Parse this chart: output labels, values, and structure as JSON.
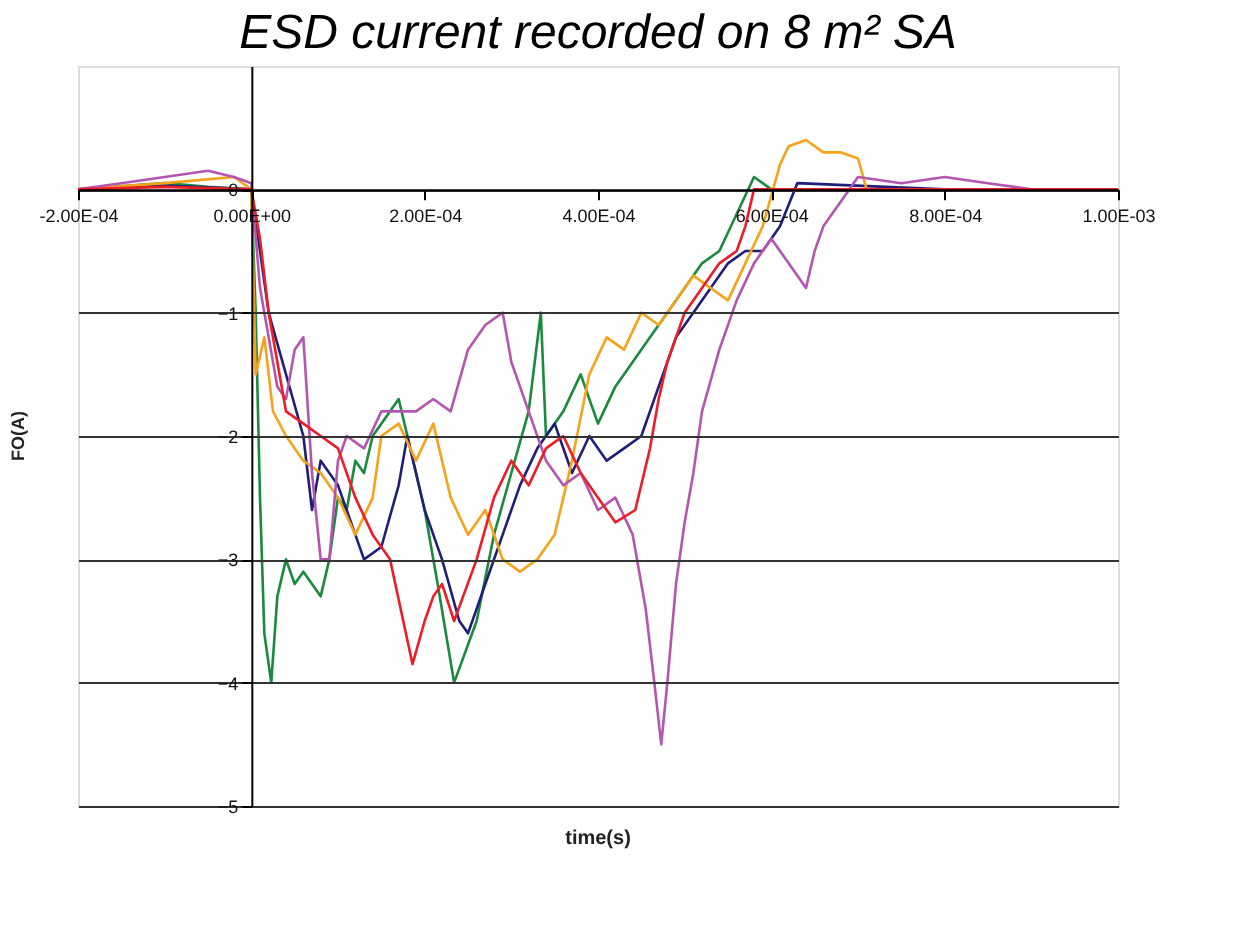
{
  "chart_data": {
    "type": "line",
    "title": "ESD current recorded on 8 m² SA",
    "xlabel": "time(s)",
    "ylabel": "FO(A)",
    "xlim": [
      -0.0002,
      0.001
    ],
    "ylim": [
      -5,
      1
    ],
    "xticks": [
      {
        "value": -0.0002,
        "label": "-2.00E-04"
      },
      {
        "value": 0,
        "label": "0.00E+00"
      },
      {
        "value": 0.0002,
        "label": "2.00E-04"
      },
      {
        "value": 0.0004,
        "label": "4.00E-04"
      },
      {
        "value": 0.0006,
        "label": "6.00E-04"
      },
      {
        "value": 0.0008,
        "label": "8.00E-04"
      },
      {
        "value": 0.001,
        "label": "1.00E-03"
      }
    ],
    "yticks": [
      -5,
      -4,
      -3,
      -2,
      -1,
      0
    ],
    "grid": "y",
    "legend": false,
    "marker": "none",
    "line_style": "solid",
    "series": [
      {
        "color": "#1a8a3c",
        "x": [
          -0.0002,
          -0.0001,
          -5e-05,
          0,
          5e-06,
          1e-05,
          1.5e-05,
          2.3e-05,
          3e-05,
          4e-05,
          5e-05,
          6e-05,
          7e-05,
          8e-05,
          9e-05,
          0.0001,
          0.00011,
          0.00012,
          0.00013,
          0.00014,
          0.00015,
          0.00017,
          0.0002,
          0.000215,
          0.000234,
          0.00026,
          0.00028,
          0.0003,
          0.00032,
          0.000334,
          0.00034,
          0.00036,
          0.00038,
          0.0004,
          0.00042,
          0.00044,
          0.00046,
          0.00048,
          0.0005,
          0.00052,
          0.00054,
          0.00056,
          0.00058,
          0.0006,
          0.0008,
          0.001
        ],
        "values": [
          0,
          0.05,
          0.02,
          0,
          -1.0,
          -2.5,
          -3.6,
          -4.0,
          -3.3,
          -3.0,
          -3.2,
          -3.1,
          -3.2,
          -3.3,
          -3.0,
          -2.5,
          -2.6,
          -2.2,
          -2.3,
          -2.0,
          -1.9,
          -1.7,
          -2.6,
          -3.2,
          -4.0,
          -3.5,
          -2.8,
          -2.3,
          -1.8,
          -1.0,
          -2.0,
          -1.8,
          -1.5,
          -1.9,
          -1.6,
          -1.4,
          -1.2,
          -1.0,
          -0.8,
          -0.6,
          -0.5,
          -0.2,
          0.1,
          0,
          0,
          0
        ]
      },
      {
        "color": "#1f1f7a",
        "x": [
          -0.0002,
          -0.0001,
          0,
          1e-05,
          2e-05,
          4e-05,
          6e-05,
          7e-05,
          8e-05,
          0.0001,
          0.00012,
          0.00013,
          0.00015,
          0.00017,
          0.00018,
          0.0002,
          0.00022,
          0.00024,
          0.00025,
          0.00027,
          0.00029,
          0.00031,
          0.00033,
          0.00035,
          0.00037,
          0.00039,
          0.00041,
          0.00043,
          0.00045,
          0.00047,
          0.00049,
          0.00051,
          0.00053,
          0.00055,
          0.00057,
          0.00059,
          0.00061,
          0.00063,
          0.0008,
          0.001
        ],
        "values": [
          0,
          0.03,
          0,
          -0.5,
          -1.0,
          -1.5,
          -2.0,
          -2.6,
          -2.2,
          -2.4,
          -2.8,
          -3.0,
          -2.9,
          -2.4,
          -2.0,
          -2.6,
          -3.0,
          -3.5,
          -3.6,
          -3.2,
          -2.8,
          -2.4,
          -2.1,
          -1.9,
          -2.3,
          -2.0,
          -2.2,
          -2.1,
          -2.0,
          -1.6,
          -1.2,
          -1.0,
          -0.8,
          -0.6,
          -0.5,
          -0.5,
          -0.3,
          0.05,
          0,
          0
        ]
      },
      {
        "color": "#f7a21b",
        "x": [
          -0.0002,
          -0.0001,
          -2e-05,
          0,
          5e-06,
          1.5e-05,
          2.5e-05,
          4e-05,
          6e-05,
          8e-05,
          0.0001,
          0.00012,
          0.00014,
          0.00015,
          0.00017,
          0.00019,
          0.00021,
          0.00023,
          0.00025,
          0.00027,
          0.00029,
          0.00031,
          0.00033,
          0.00035,
          0.00037,
          0.00039,
          0.00041,
          0.00043,
          0.00045,
          0.00047,
          0.00049,
          0.00051,
          0.00053,
          0.00055,
          0.00057,
          0.00059,
          0.00061,
          0.00062,
          0.00064,
          0.00066,
          0.00068,
          0.0007,
          0.00071,
          0.0008,
          0.001
        ],
        "values": [
          0,
          0.05,
          0.1,
          0,
          -1.5,
          -1.2,
          -1.8,
          -2.0,
          -2.2,
          -2.3,
          -2.5,
          -2.8,
          -2.5,
          -2.0,
          -1.9,
          -2.2,
          -1.9,
          -2.5,
          -2.8,
          -2.6,
          -3.0,
          -3.1,
          -3.0,
          -2.8,
          -2.2,
          -1.5,
          -1.2,
          -1.3,
          -1.0,
          -1.1,
          -0.9,
          -0.7,
          -0.8,
          -0.9,
          -0.6,
          -0.3,
          0.2,
          0.35,
          0.4,
          0.3,
          0.3,
          0.25,
          0.0,
          0,
          0
        ]
      },
      {
        "color": "#b455b0",
        "x": [
          -0.0002,
          -0.00015,
          -0.0001,
          -5e-05,
          -2e-05,
          0,
          1e-05,
          2e-05,
          3e-05,
          4e-05,
          5e-05,
          6e-05,
          7e-05,
          8e-05,
          9e-05,
          0.0001,
          0.00011,
          0.00013,
          0.00015,
          0.00017,
          0.00019,
          0.00021,
          0.00023,
          0.00025,
          0.00027,
          0.00029,
          0.0003,
          0.00032,
          0.00034,
          0.00036,
          0.00038,
          0.0004,
          0.00042,
          0.00044,
          0.000455,
          0.000465,
          0.000473,
          0.00048,
          0.00049,
          0.0005,
          0.00051,
          0.00052,
          0.00054,
          0.00056,
          0.00058,
          0.0006,
          0.00062,
          0.00064,
          0.00065,
          0.00066,
          0.00068,
          0.0007,
          0.00075,
          0.0008,
          0.00085,
          0.0009,
          0.001
        ],
        "values": [
          0,
          0.05,
          0.1,
          0.15,
          0.1,
          0.05,
          -0.8,
          -1.2,
          -1.6,
          -1.7,
          -1.3,
          -1.2,
          -2.3,
          -3.0,
          -3.0,
          -2.2,
          -2.0,
          -2.1,
          -1.8,
          -1.8,
          -1.8,
          -1.7,
          -1.8,
          -1.3,
          -1.1,
          -1.0,
          -1.4,
          -1.8,
          -2.2,
          -2.4,
          -2.3,
          -2.6,
          -2.5,
          -2.8,
          -3.4,
          -4.0,
          -4.5,
          -4.0,
          -3.2,
          -2.7,
          -2.3,
          -1.8,
          -1.3,
          -0.9,
          -0.6,
          -0.4,
          -0.6,
          -0.8,
          -0.5,
          -0.3,
          -0.1,
          0.1,
          0.05,
          0.1,
          0.05,
          0.0,
          0
        ]
      },
      {
        "color": "#ee1c25",
        "x": [
          -0.0002,
          -0.0001,
          0,
          1e-05,
          2e-05,
          3e-05,
          4e-05,
          6e-05,
          8e-05,
          0.0001,
          0.00012,
          0.00014,
          0.00016,
          0.000186,
          0.0002,
          0.00021,
          0.00022,
          0.000234,
          0.00026,
          0.00028,
          0.0003,
          0.00032,
          0.00034,
          0.00036,
          0.00038,
          0.0004,
          0.00042,
          0.000443,
          0.00046,
          0.00047,
          0.00048,
          0.0005,
          0.00052,
          0.00054,
          0.00056,
          0.00057,
          0.00058,
          0.0007,
          0.0008,
          0.001
        ],
        "values": [
          0,
          0.02,
          0,
          -0.4,
          -1.0,
          -1.4,
          -1.8,
          -1.9,
          -2.0,
          -2.1,
          -2.5,
          -2.8,
          -3.0,
          -3.85,
          -3.5,
          -3.3,
          -3.2,
          -3.5,
          -3.0,
          -2.5,
          -2.2,
          -2.4,
          -2.1,
          -2.0,
          -2.3,
          -2.5,
          -2.7,
          -2.6,
          -2.1,
          -1.7,
          -1.4,
          -1.0,
          -0.8,
          -0.6,
          -0.5,
          -0.3,
          0.0,
          0,
          0,
          0
        ]
      }
    ]
  }
}
